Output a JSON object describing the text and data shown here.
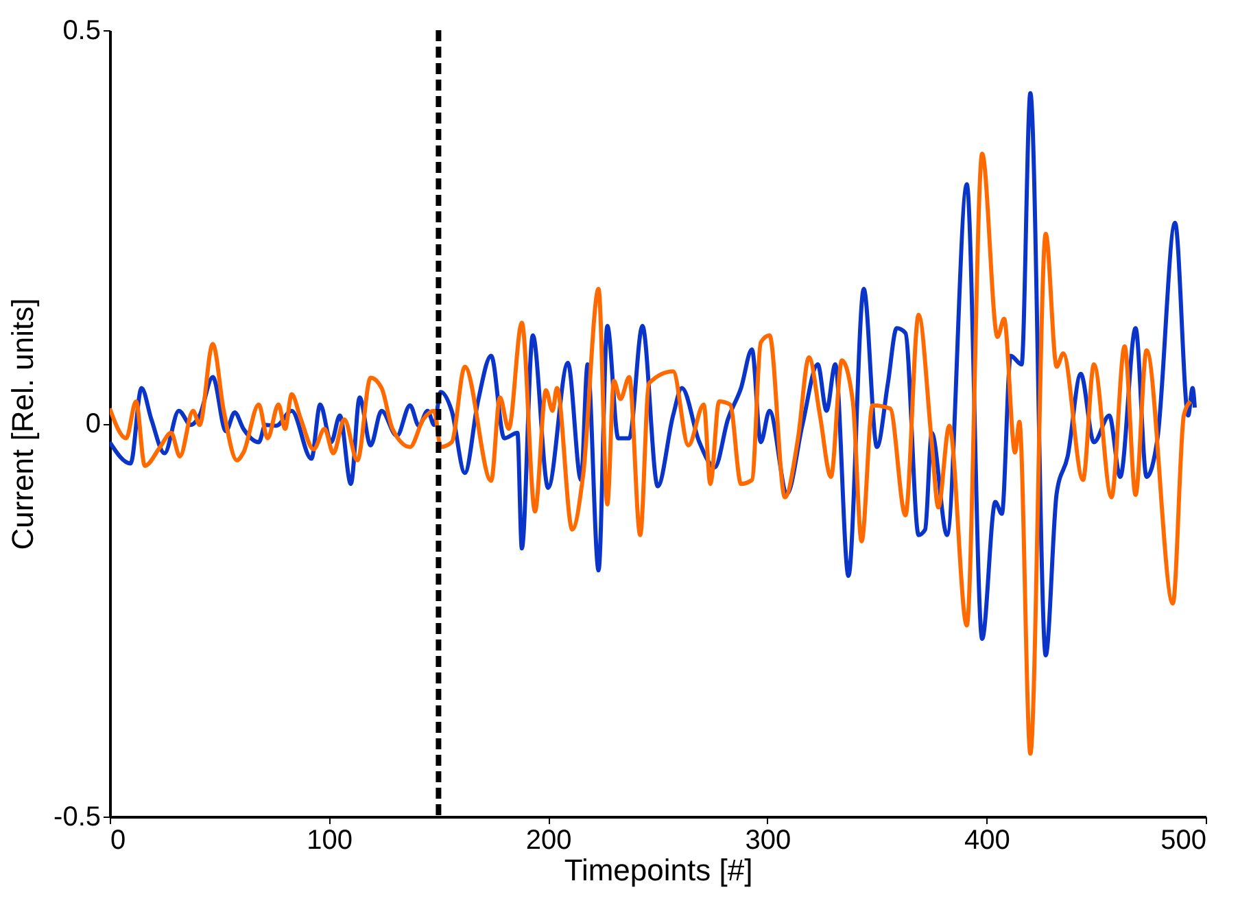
{
  "chart_data": {
    "type": "line",
    "xlabel": "Timepoints [#]",
    "ylabel": "Current [Rel. units]",
    "xlim": [
      0,
      500
    ],
    "xticks": [
      0,
      100,
      200,
      300,
      400,
      500
    ],
    "ylim": [
      -0.5,
      0.5
    ],
    "yticks": [
      -0.5,
      0,
      0.5
    ],
    "grid": false,
    "line_style": "solid",
    "marker": "none",
    "ref_lines": [
      {
        "axis": "x",
        "value": 150,
        "color": "#000000",
        "line_style": "dashed"
      }
    ],
    "series": [
      {
        "color": "#0a35c8",
        "x": [
          0,
          9.5,
          14.5,
          19,
          25,
          31.5,
          37,
          41,
          47,
          53,
          57,
          61,
          68,
          71,
          76,
          83,
          92,
          96,
          101,
          105,
          110,
          114,
          119,
          124,
          131,
          137,
          141,
          145,
          148,
          151,
          156,
          162,
          168,
          174,
          180,
          186,
          188,
          193,
          200,
          209,
          215,
          218,
          223,
          227,
          232,
          237,
          243,
          250,
          257,
          261,
          269,
          276,
          282,
          288,
          293,
          297,
          301,
          309,
          316,
          323,
          327,
          331,
          337,
          344,
          350,
          355,
          359,
          363,
          369,
          372,
          375,
          382,
          391,
          398,
          404,
          407,
          411,
          416,
          420,
          427,
          432,
          437,
          443,
          449,
          456,
          461,
          468,
          473,
          478,
          486,
          492,
          494,
          495
        ],
        "values": [
          -0.024,
          -0.051,
          0.045,
          0.005,
          -0.038,
          0.016,
          -0.002,
          0.01,
          0.059,
          -0.01,
          0.014,
          -0.007,
          -0.024,
          -0.002,
          -0.003,
          0.016,
          -0.045,
          0.024,
          -0.024,
          0.01,
          -0.077,
          0.033,
          -0.028,
          0.016,
          -0.016,
          0.023,
          -0.003,
          0.016,
          -0.002,
          0.04,
          0.016,
          -0.063,
          0.028,
          0.086,
          -0.019,
          -0.012,
          -0.159,
          0.112,
          -0.082,
          0.077,
          -0.072,
          0.075,
          -0.187,
          0.124,
          -0.019,
          -0.019,
          0.124,
          -0.08,
          0.01,
          0.045,
          -0.024,
          -0.056,
          0.005,
          0.045,
          0.094,
          -0.024,
          0.016,
          -0.089,
          -0.002,
          0.075,
          0.016,
          0.075,
          -0.194,
          0.171,
          -0.03,
          0.051,
          0.121,
          0.115,
          -0.142,
          -0.135,
          -0.012,
          -0.142,
          0.304,
          -0.274,
          -0.1,
          -0.115,
          0.086,
          0.075,
          0.42,
          -0.295,
          -0.089,
          -0.042,
          0.063,
          -0.024,
          0.01,
          -0.068,
          0.121,
          -0.068,
          -0.019,
          0.255,
          0.01,
          0.045,
          0.02
        ]
      },
      {
        "color": "#ff6a00",
        "x": [
          0,
          7.5,
          12,
          16,
          23,
          28,
          32,
          38,
          41,
          47,
          52,
          58,
          61,
          68,
          72,
          77,
          80,
          83,
          87,
          93,
          98,
          102,
          107,
          113,
          119,
          124,
          129,
          137,
          143,
          148,
          151,
          156,
          162,
          174,
          178,
          182,
          188,
          194,
          199,
          202,
          204,
          211,
          216,
          223,
          227,
          230,
          233,
          237,
          242,
          246,
          257,
          264,
          271,
          274,
          278,
          283,
          288,
          293,
          297,
          301,
          308,
          314,
          319,
          324,
          329,
          334,
          339,
          343,
          348,
          356,
          363,
          369,
          375,
          378,
          383,
          391,
          398,
          405,
          408,
          413,
          415,
          420,
          427,
          432,
          435,
          444,
          449,
          457,
          463,
          468,
          473,
          485,
          490,
          493
        ],
        "values": [
          0.019,
          -0.019,
          0.028,
          -0.054,
          -0.03,
          -0.012,
          -0.042,
          0.016,
          -0.002,
          0.101,
          0.016,
          -0.047,
          -0.037,
          0.024,
          -0.019,
          0.024,
          -0.007,
          0.037,
          0.007,
          -0.033,
          -0.007,
          -0.038,
          0.005,
          -0.047,
          0.058,
          0.045,
          -0.007,
          -0.03,
          0.005,
          0.016,
          -0.03,
          -0.024,
          0.072,
          -0.073,
          0.033,
          -0.007,
          0.128,
          -0.112,
          0.042,
          0.016,
          0.045,
          -0.135,
          -0.065,
          0.171,
          -0.103,
          0.054,
          0.031,
          0.059,
          -0.142,
          0.051,
          0.066,
          -0.028,
          0.024,
          -0.077,
          0.028,
          0.024,
          -0.077,
          -0.072,
          0.103,
          0.112,
          -0.094,
          -0.019,
          0.084,
          0.01,
          -0.068,
          0.08,
          0.028,
          -0.15,
          0.023,
          0.019,
          -0.117,
          0.138,
          -0.024,
          -0.107,
          -0.003,
          -0.257,
          0.343,
          0.11,
          0.133,
          -0.037,
          0.002,
          -0.42,
          0.241,
          0.072,
          0.089,
          -0.072,
          0.075,
          -0.094,
          0.098,
          -0.091,
          0.093,
          -0.229,
          0.01,
          0.028
        ]
      }
    ]
  }
}
